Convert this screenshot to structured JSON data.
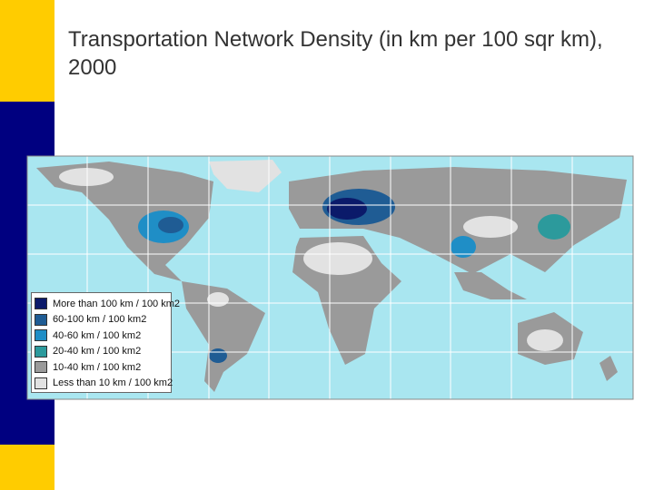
{
  "slide": {
    "title": "Transportation Network Density (in km per 100 sqr km), 2000"
  },
  "map": {
    "legend": [
      {
        "label": "More than 100 km / 100 km2",
        "color": "#0b1a6a"
      },
      {
        "label": "60-100 km / 100 km2",
        "color": "#1f5c94"
      },
      {
        "label": "40-60 km / 100 km2",
        "color": "#1f8ec6"
      },
      {
        "label": "20-40 km / 100 km2",
        "color": "#2c9a9c"
      },
      {
        "label": "10-40 km / 100 km2",
        "color": "#9a9a9a"
      },
      {
        "label": "Less than 10 km / 100 km2",
        "color": "#e2e2e2"
      }
    ]
  }
}
